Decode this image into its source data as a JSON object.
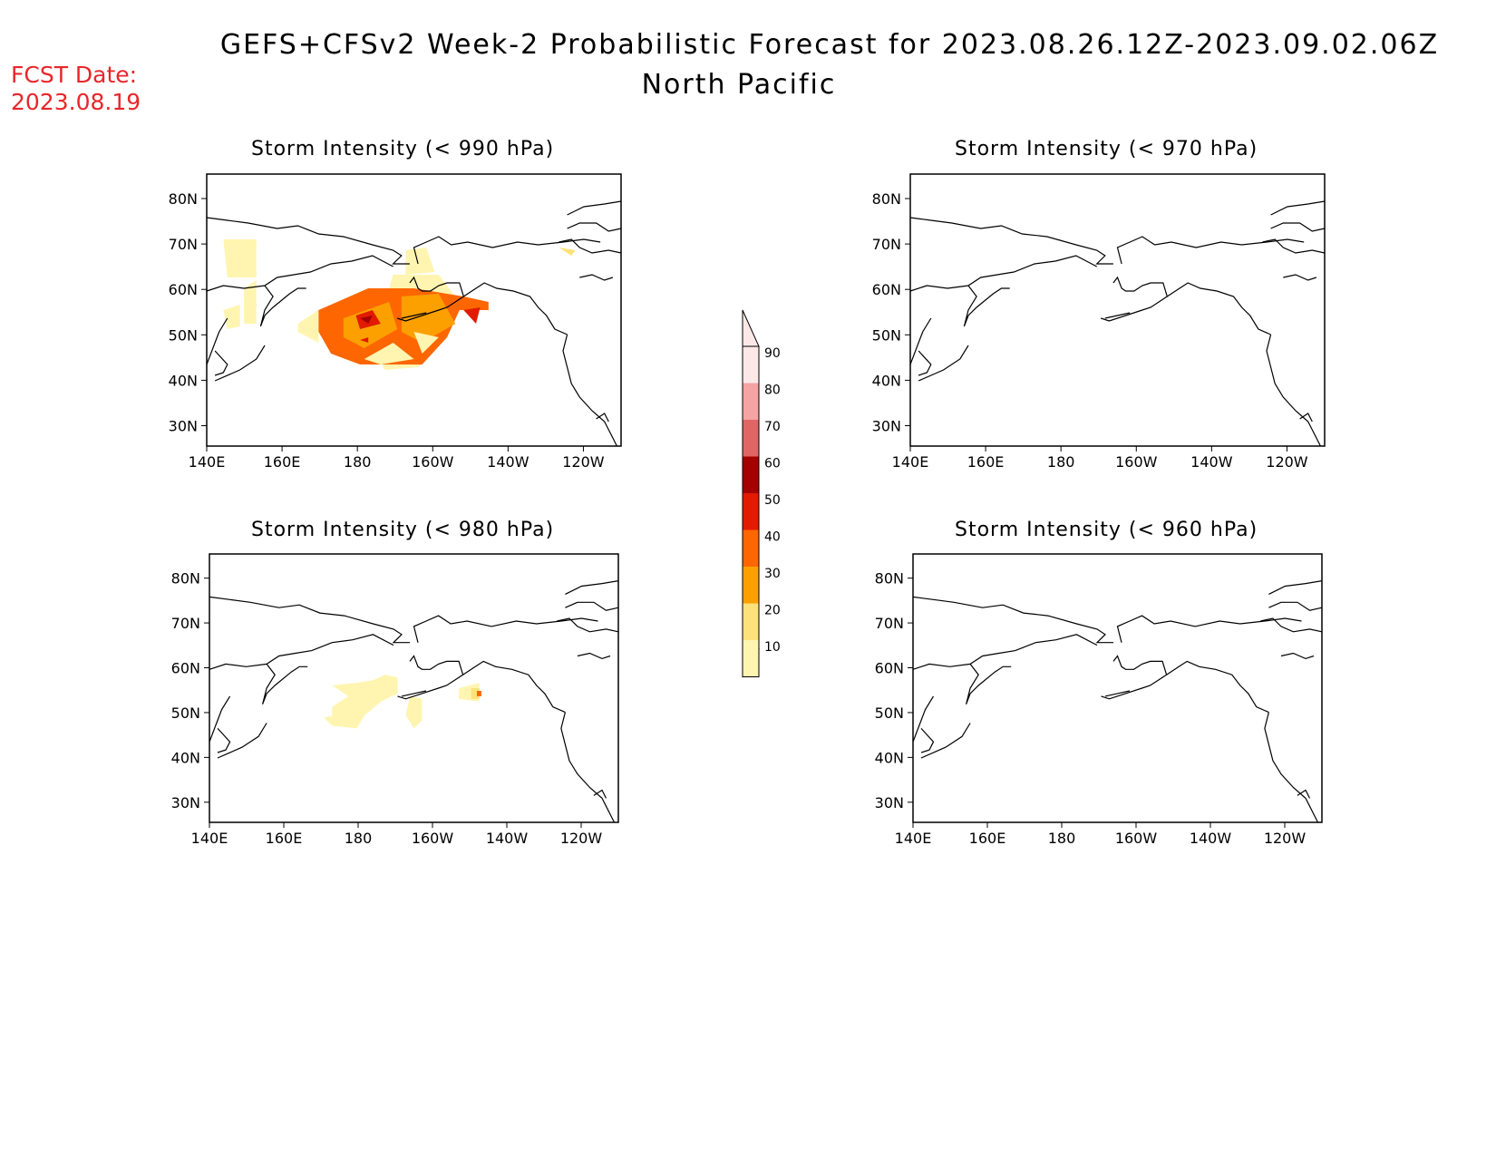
{
  "header": {
    "title": "GEFS+CFSv2 Week-2 Probabilistic Forecast for 2023.08.26.12Z-2023.09.02.06Z",
    "subtitle": "North Pacific",
    "fcst_label": "FCST Date:",
    "fcst_date": "2023.08.19"
  },
  "panels": [
    {
      "id": "p990",
      "title": "Storm Intensity (< 990 hPa)"
    },
    {
      "id": "p970",
      "title": "Storm Intensity (< 970 hPa)"
    },
    {
      "id": "p980",
      "title": "Storm Intensity (< 980 hPa)"
    },
    {
      "id": "p960",
      "title": "Storm Intensity (< 960 hPa)"
    }
  ],
  "axes": {
    "lon_ticks": [
      "140E",
      "160E",
      "180",
      "160W",
      "140W",
      "120W"
    ],
    "lat_ticks": [
      "80N",
      "70N",
      "60N",
      "50N",
      "40N",
      "30N"
    ]
  },
  "colorbar": {
    "levels": [
      "10",
      "20",
      "30",
      "40",
      "50",
      "60",
      "70",
      "80",
      "90"
    ],
    "colors": [
      "#fff5b0",
      "#fde17a",
      "#fca000",
      "#fd6600",
      "#e21b00",
      "#a40000",
      "#e06666",
      "#f5a3a3",
      "#fde8e8"
    ]
  }
}
